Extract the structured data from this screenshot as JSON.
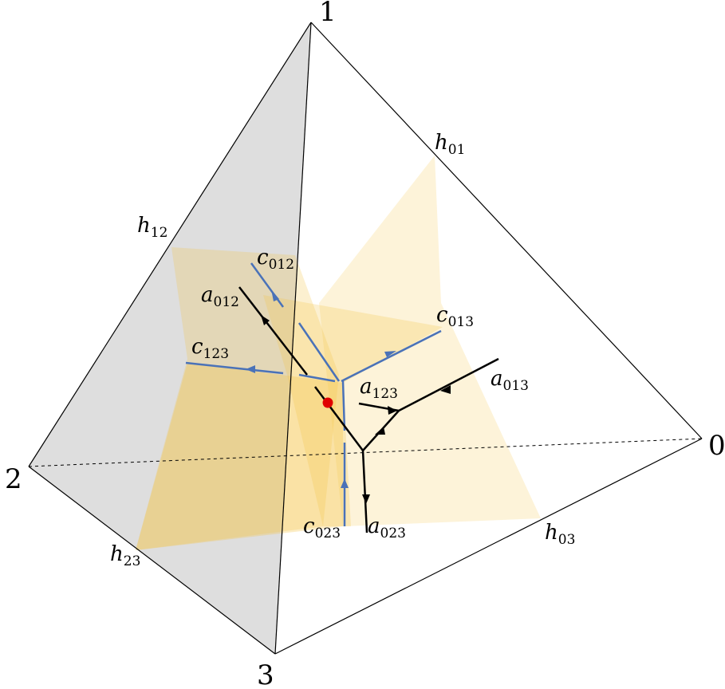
{
  "vertices": {
    "v0": "0",
    "v1": "1",
    "v2": "2",
    "v3": "3"
  },
  "hyperplanes": {
    "h01": {
      "base": "h",
      "sub": "01"
    },
    "h12": {
      "base": "h",
      "sub": "12"
    },
    "h03": {
      "base": "h",
      "sub": "03"
    },
    "h23": {
      "base": "h",
      "sub": "23"
    }
  },
  "curves_c": {
    "c012": {
      "base": "c",
      "sub": "012"
    },
    "c013": {
      "base": "c",
      "sub": "013"
    },
    "c123": {
      "base": "c",
      "sub": "123"
    },
    "c023": {
      "base": "c",
      "sub": "023"
    }
  },
  "curves_a": {
    "a012": {
      "base": "a",
      "sub": "012"
    },
    "a013": {
      "base": "a",
      "sub": "013"
    },
    "a123": {
      "base": "a",
      "sub": "123"
    },
    "a023": {
      "base": "a",
      "sub": "023"
    }
  },
  "colors": {
    "face_gray": "#c8c8c8",
    "plane_yellow": "#f5c542",
    "c_curves": "#4a72b8",
    "a_curves": "#000000",
    "marked_point": "#e00000"
  }
}
